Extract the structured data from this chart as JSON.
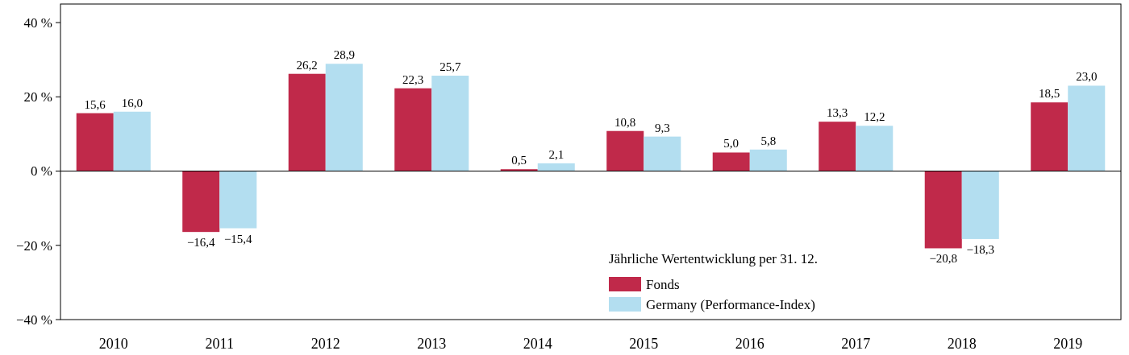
{
  "chart_data": {
    "type": "bar",
    "categories": [
      "2010",
      "2011",
      "2012",
      "2013",
      "2014",
      "2015",
      "2016",
      "2017",
      "2018",
      "2019"
    ],
    "series": [
      {
        "name": "Fonds",
        "color": "#c0294a",
        "values": [
          15.6,
          -16.4,
          26.2,
          22.3,
          0.5,
          10.8,
          5.0,
          13.3,
          -20.8,
          18.5
        ],
        "value_labels": [
          "15,6",
          "−16,4",
          "26,2",
          "22,3",
          "0,5",
          "10,8",
          "5,0",
          "13,3",
          "−20,8",
          "18,5"
        ]
      },
      {
        "name": "Germany (Performance-Index)",
        "color": "#b3def0",
        "values": [
          16.0,
          -15.4,
          28.9,
          25.7,
          2.1,
          9.3,
          5.8,
          12.2,
          -18.3,
          23.0
        ],
        "value_labels": [
          "16,0",
          "−15,4",
          "28,9",
          "25,7",
          "2,1",
          "9,3",
          "5,8",
          "12,2",
          "−18,3",
          "23,0"
        ]
      }
    ],
    "legend_title": "Jährliche Wertentwicklung per 31. 12.",
    "legend": "bottom right",
    "ylim": [
      -40,
      45
    ],
    "yticks": [
      {
        "value": -40,
        "label": "−40 %"
      },
      {
        "value": -20,
        "label": "−20 %"
      },
      {
        "value": 0,
        "label": "0 %"
      },
      {
        "value": 20,
        "label": "20 %"
      },
      {
        "value": 40,
        "label": "40 %"
      }
    ],
    "ref_lines": [
      {
        "axis": "y",
        "value": 0,
        "color": "#000000"
      }
    ]
  }
}
